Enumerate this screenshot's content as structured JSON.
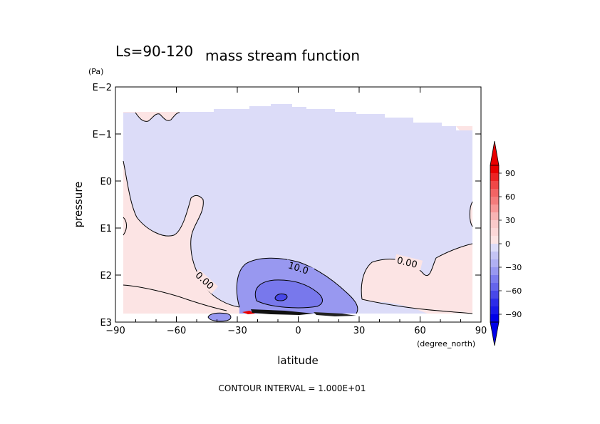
{
  "chart_data": {
    "type": "contour",
    "title": "mass stream function",
    "subtitle": "Ls=90-120",
    "xlabel": "latitude",
    "x_units": "(degree_north)",
    "ylabel": "pressure",
    "y_units": "(Pa)",
    "xlim": [
      -90,
      90
    ],
    "ylim": [
      1000,
      0.01
    ],
    "y_scale": "log",
    "x_ticks": [
      -90,
      -60,
      -30,
      0,
      30,
      60,
      90
    ],
    "x_tick_labels": [
      "−90",
      "−60",
      "−30",
      "0",
      "30",
      "60",
      "90"
    ],
    "y_ticks": [
      1000,
      100,
      10,
      1,
      0.1,
      0.01
    ],
    "y_tick_labels": [
      "E3",
      "E2",
      "E1",
      "E0",
      "E−1",
      "E−2"
    ],
    "contour_labels": [
      {
        "text": "10.0",
        "lat": -2,
        "p": 90,
        "angle": 18
      },
      {
        "text": "0.00",
        "lat": 54,
        "p": 75,
        "angle": 14
      },
      {
        "text": "0.00",
        "lat": -47,
        "p": 210,
        "angle": 42
      }
    ],
    "footer": "CONTOUR INTERVAL = 1.000E+01",
    "colorbar": {
      "labels": [
        "90",
        "60",
        "30",
        "0",
        "−30",
        "−60",
        "−90"
      ],
      "values": [
        90,
        60,
        30,
        0,
        -30,
        -60,
        -90
      ],
      "colors": {
        "90_plus": "#e80000",
        "60_90": "#f04848",
        "30_60": "#f89898",
        "0_30": "#fce4e4",
        "-30_0": "#dcdcf8",
        "-60_-30": "#9898f0",
        "-90_-60": "#4848e8",
        "minus": "#0000e8"
      },
      "extend": "both"
    }
  }
}
